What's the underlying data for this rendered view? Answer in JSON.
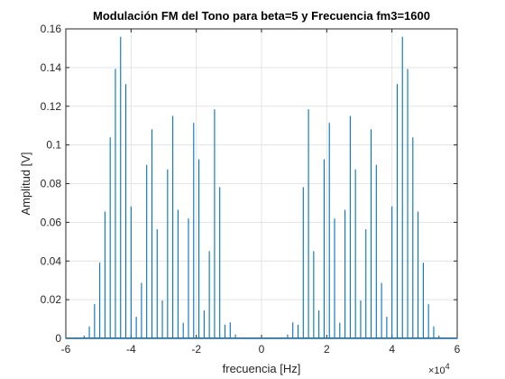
{
  "chart_data": {
    "type": "stem",
    "title": "Modulación FM del Tono para beta=5 y Frecuencia fm3=1600",
    "xlabel": "frecuencia [Hz]",
    "ylabel": "Amplitud [V]",
    "x_exponent_label": "×10",
    "x_exponent_power": "4",
    "xlim": [
      -60000,
      60000
    ],
    "ylim": [
      0,
      0.16
    ],
    "xticks": [
      -60000,
      -40000,
      -20000,
      0,
      20000,
      40000,
      60000
    ],
    "xtick_labels": [
      "-6",
      "-4",
      "-2",
      "0",
      "2",
      "4",
      "6"
    ],
    "yticks": [
      0,
      0.02,
      0.04,
      0.06,
      0.08,
      0.1,
      0.12,
      0.14,
      0.16
    ],
    "ytick_labels": [
      "0",
      "0.02",
      "0.04",
      "0.06",
      "0.08",
      "0.1",
      "0.12",
      "0.14",
      "0.16"
    ],
    "grid": true,
    "line_color": "#0072BD",
    "carrier_hz": 30000,
    "fm_hz": 1600,
    "series": [
      {
        "x": [
          -54400,
          -52800,
          -51200,
          -49600,
          -48000,
          -46400,
          -44800,
          -43200,
          -41600,
          -40000,
          -38400,
          -36800,
          -35200,
          -33600,
          -32000,
          -30400,
          -28800,
          -27200,
          -25600,
          -24000,
          -22400,
          -20800,
          -19200,
          -17600,
          -16000,
          -14400,
          -12800,
          -11200,
          -9600,
          -8000,
          -6400,
          -4800,
          -3200,
          -1600,
          0,
          1600,
          3200,
          4800,
          6400,
          8000,
          9600,
          11200,
          12800,
          14400,
          16000,
          17600,
          19200,
          20800,
          22400,
          24000,
          25600,
          27200,
          28800,
          30400,
          32000,
          33600,
          35200,
          36800,
          38400,
          40000,
          41600,
          43200,
          44800,
          46400,
          48000,
          49600,
          51200,
          52800,
          54400
        ],
        "y": [
          0.0015,
          0.0062,
          0.0177,
          0.0391,
          0.0656,
          0.1039,
          0.1393,
          0.1559,
          0.1315,
          0.0682,
          0.0112,
          0.0287,
          0.0897,
          0.1081,
          0.0564,
          0.0196,
          0.0874,
          0.115,
          0.0665,
          0.0081,
          0.062,
          0.1114,
          0.0926,
          0.0145,
          0.0451,
          0.1184,
          0.0782,
          0.0071,
          0.0083,
          0.002,
          0.0005,
          0.0001,
          0.0,
          0.0,
          0.0,
          0.0,
          0.0,
          0.0001,
          0.0005,
          0.002,
          0.0083,
          0.0071,
          0.0782,
          0.1184,
          0.0451,
          0.0145,
          0.0926,
          0.1114,
          0.062,
          0.0081,
          0.0665,
          0.115,
          0.0874,
          0.0196,
          0.0564,
          0.1081,
          0.0897,
          0.0287,
          0.0112,
          0.0682,
          0.1315,
          0.1559,
          0.1393,
          0.1039,
          0.0656,
          0.0391,
          0.0177,
          0.0062,
          0.0015
        ]
      }
    ]
  }
}
